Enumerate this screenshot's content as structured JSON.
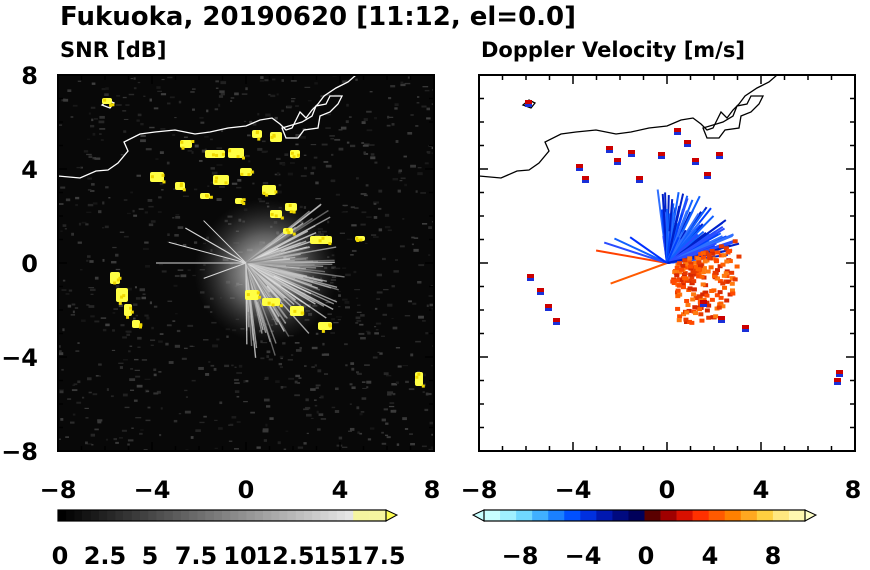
{
  "figure": {
    "title": "Fukuoka, 20190620 [11:12, el=0.0]"
  },
  "chart_data": [
    {
      "type": "heatmap",
      "panel_title": "SNR [dB]",
      "x_ticks": [
        "−8",
        "−4",
        "0",
        "4",
        "8"
      ],
      "y_ticks": [
        "8",
        "4",
        "0",
        "−4",
        "−8"
      ],
      "xlim": [
        -8,
        8
      ],
      "ylim": [
        -8,
        8
      ],
      "colorbar": {
        "range": [
          0,
          18.5
        ],
        "tick_labels": [
          "0",
          "2.5",
          "5",
          "7.5",
          "10",
          "12.5",
          "15",
          "17.5"
        ],
        "colors": [
          "#000000",
          "#ffffff",
          "#ffff55"
        ]
      }
    },
    {
      "type": "heatmap",
      "panel_title": "Doppler Velocity [m/s]",
      "x_ticks": [
        "−8",
        "−4",
        "0",
        "4",
        "8"
      ],
      "y_ticks": [
        "8",
        "4",
        "0",
        "−4",
        "−8"
      ],
      "xlim": [
        -8,
        8
      ],
      "ylim": [
        -8,
        8
      ],
      "colorbar": {
        "range": [
          -10,
          10
        ],
        "tick_labels": [
          "−8",
          "−4",
          "0",
          "4",
          "8"
        ],
        "colors": [
          "#c8ffff",
          "#0030ff",
          "#00008b",
          "#8b0000",
          "#ff3000",
          "#ffff80"
        ]
      }
    }
  ]
}
